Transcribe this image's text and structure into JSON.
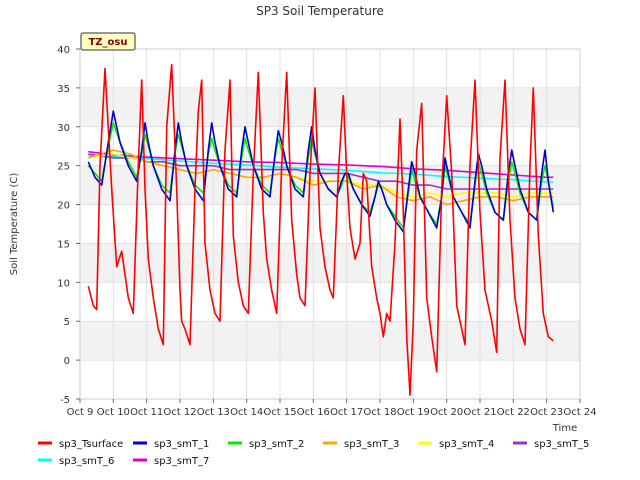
{
  "chart_data": {
    "type": "line",
    "title": "SP3 Soil Temperature",
    "xlabel": "Time",
    "ylabel": "Soil Temperature (C)",
    "badge": "TZ_osu",
    "xlim": [
      9,
      24
    ],
    "ylim": [
      -5,
      40
    ],
    "x_ticks": [
      {
        "value": 9,
        "label": "Oct 9"
      },
      {
        "value": 10,
        "label": "Oct 10"
      },
      {
        "value": 11,
        "label": "Oct 11"
      },
      {
        "value": 12,
        "label": "Oct 12"
      },
      {
        "value": 13,
        "label": "Oct 13"
      },
      {
        "value": 14,
        "label": "Oct 14"
      },
      {
        "value": 15,
        "label": "Oct 15"
      },
      {
        "value": 16,
        "label": "Oct 16"
      },
      {
        "value": 17,
        "label": "Oct 17"
      },
      {
        "value": 18,
        "label": "Oct 18"
      },
      {
        "value": 19,
        "label": "Oct 19"
      },
      {
        "value": 20,
        "label": "Oct 20"
      },
      {
        "value": 21,
        "label": "Oct 21"
      },
      {
        "value": 22,
        "label": "Oct 22"
      },
      {
        "value": 23,
        "label": "Oct 23"
      },
      {
        "value": 24,
        "label": "Oct 24"
      }
    ],
    "y_ticks": [
      {
        "value": -5,
        "label": "-5"
      },
      {
        "value": 0,
        "label": "0"
      },
      {
        "value": 5,
        "label": "5"
      },
      {
        "value": 10,
        "label": "10"
      },
      {
        "value": 15,
        "label": "15"
      },
      {
        "value": 20,
        "label": "20"
      },
      {
        "value": 25,
        "label": "25"
      },
      {
        "value": 30,
        "label": "30"
      },
      {
        "value": 35,
        "label": "35"
      },
      {
        "value": 40,
        "label": "40"
      }
    ],
    "series": [
      {
        "name": "sp3_Tsurface",
        "color": "#ff0000",
        "x": [
          9.25,
          9.4,
          9.5,
          9.6,
          9.75,
          9.95,
          10.1,
          10.25,
          10.45,
          10.6,
          10.75,
          10.85,
          10.95,
          11.05,
          11.2,
          11.35,
          11.5,
          11.6,
          11.75,
          11.9,
          12.0,
          12.05,
          12.15,
          12.3,
          12.45,
          12.55,
          12.65,
          12.75,
          12.9,
          13.05,
          13.2,
          13.35,
          13.5,
          13.6,
          13.75,
          13.9,
          14.05,
          14.2,
          14.35,
          14.5,
          14.6,
          14.75,
          14.9,
          15.05,
          15.2,
          15.35,
          15.5,
          15.6,
          15.75,
          15.9,
          16.05,
          16.2,
          16.35,
          16.5,
          16.6,
          16.75,
          16.9,
          17.0,
          17.1,
          17.25,
          17.4,
          17.5,
          17.6,
          17.75,
          17.9,
          18.0,
          18.1,
          18.2,
          18.3,
          18.45,
          18.6,
          18.7,
          18.8,
          18.9,
          19.0,
          19.1,
          19.25,
          19.4,
          19.55,
          19.7,
          19.85,
          20.0,
          20.15,
          20.3,
          20.45,
          20.55,
          20.7,
          20.85,
          21.0,
          21.15,
          21.35,
          21.5,
          21.6,
          21.75,
          21.9,
          22.05,
          22.2,
          22.35,
          22.5,
          22.6,
          22.75,
          22.9,
          23.05,
          23.2
        ],
        "y": [
          9.5,
          7,
          6.5,
          25,
          37.5,
          22,
          12,
          14,
          8,
          6,
          25,
          36,
          22,
          13,
          8,
          4,
          2,
          30,
          38,
          22,
          9,
          5,
          4,
          2,
          22,
          32,
          36,
          15,
          9,
          6,
          5,
          27,
          36,
          16,
          10,
          7,
          6,
          24,
          37,
          19,
          13,
          9,
          6,
          25,
          37,
          18,
          11,
          8,
          7,
          24,
          35,
          17,
          12,
          9,
          8,
          24,
          34,
          24,
          17,
          13,
          15,
          24,
          23,
          12,
          8,
          6,
          3,
          6,
          5,
          15,
          31,
          19,
          3,
          -4.5,
          5,
          27,
          33,
          8,
          3,
          -1.5,
          22,
          34,
          24,
          7,
          4,
          2,
          25,
          36,
          19,
          9,
          5,
          1,
          26,
          36,
          18,
          8,
          4,
          2,
          25,
          35,
          16,
          6,
          3,
          2.5
        ]
      },
      {
        "name": "sp3_smT_1",
        "color": "#0000cc",
        "x": [
          9.25,
          9.45,
          9.65,
          9.85,
          10.0,
          10.2,
          10.45,
          10.7,
          10.85,
          10.95,
          11.05,
          11.2,
          11.45,
          11.7,
          11.85,
          11.95,
          12.05,
          12.2,
          12.45,
          12.7,
          12.85,
          12.95,
          13.05,
          13.2,
          13.45,
          13.7,
          13.85,
          13.95,
          14.05,
          14.2,
          14.45,
          14.7,
          14.85,
          14.95,
          15.05,
          15.2,
          15.45,
          15.7,
          15.85,
          15.95,
          16.05,
          16.2,
          16.45,
          16.7,
          16.85,
          16.95,
          17.05,
          17.2,
          17.45,
          17.7,
          17.85,
          17.95,
          18.05,
          18.2,
          18.45,
          18.7,
          18.85,
          18.95,
          19.05,
          19.2,
          19.45,
          19.7,
          19.85,
          19.95,
          20.05,
          20.2,
          20.45,
          20.7,
          20.85,
          20.95,
          21.05,
          21.2,
          21.45,
          21.7,
          21.85,
          21.95,
          22.05,
          22.2,
          22.45,
          22.7,
          22.85,
          22.95,
          23.05,
          23.2
        ],
        "y": [
          25.5,
          23.5,
          22.5,
          28,
          32,
          28,
          25,
          23,
          27,
          30.5,
          28,
          25,
          22,
          20.5,
          27,
          30.5,
          28,
          25,
          22,
          20.5,
          27,
          30.5,
          28,
          25,
          22,
          21,
          27,
          30,
          28,
          25,
          22,
          21,
          26.5,
          29.5,
          28,
          25,
          22,
          21,
          27,
          30,
          27,
          24,
          22,
          21,
          23,
          24,
          24,
          22,
          20,
          18.5,
          21,
          23,
          22,
          20,
          18,
          16.5,
          22,
          25.5,
          24,
          21,
          19,
          17,
          21,
          26,
          24,
          21,
          19,
          17,
          23,
          26.5,
          25,
          22,
          19,
          18,
          24,
          27,
          25,
          22,
          19,
          18,
          24,
          27,
          23,
          19
        ]
      },
      {
        "name": "sp3_smT_2",
        "color": "#00ee00",
        "x": [
          9.25,
          9.45,
          9.65,
          9.85,
          10.0,
          10.2,
          10.45,
          10.7,
          10.85,
          10.95,
          11.05,
          11.2,
          11.45,
          11.7,
          11.85,
          11.95,
          12.05,
          12.2,
          12.45,
          12.7,
          12.85,
          12.95,
          13.05,
          13.2,
          13.45,
          13.7,
          13.85,
          13.95,
          14.05,
          14.2,
          14.45,
          14.7,
          14.85,
          14.95,
          15.05,
          15.2,
          15.45,
          15.7,
          15.85,
          15.95,
          16.05,
          16.2,
          16.45,
          16.7,
          16.85,
          16.95,
          17.05,
          17.2,
          17.45,
          17.7,
          17.85,
          17.95,
          18.05,
          18.2,
          18.45,
          18.7,
          18.85,
          18.95,
          19.05,
          19.2,
          19.45,
          19.7,
          19.85,
          19.95,
          20.05,
          20.2,
          20.45,
          20.7,
          20.85,
          20.95,
          21.05,
          21.2,
          21.45,
          21.7,
          21.85,
          21.95,
          22.05,
          22.2,
          22.45,
          22.7,
          22.85,
          22.95,
          23.05,
          23.2
        ],
        "y": [
          25,
          24,
          23,
          27.5,
          30.5,
          28,
          25.5,
          23.5,
          26.5,
          29,
          27.5,
          25,
          22.5,
          21.5,
          26.5,
          29,
          27.5,
          25,
          22.5,
          21.5,
          26.5,
          28.5,
          27,
          25,
          22.5,
          21.5,
          26,
          28.5,
          27,
          25,
          22.5,
          21.5,
          26,
          28.5,
          27,
          25,
          22.5,
          21.5,
          26,
          28.5,
          26.5,
          24,
          22,
          21,
          22.5,
          24,
          23.5,
          22,
          20,
          19,
          21,
          22.5,
          22,
          20,
          18.5,
          17,
          21.5,
          24.5,
          23,
          21,
          19,
          17.5,
          21,
          25,
          23.5,
          21,
          19,
          17.5,
          22.5,
          25.5,
          24,
          21.5,
          19,
          18,
          23,
          25.5,
          24,
          21.5,
          19,
          18,
          23,
          25,
          23,
          19.5
        ]
      },
      {
        "name": "sp3_smT_3",
        "color": "#ffa500",
        "x": [
          9.25,
          10.0,
          10.5,
          11.0,
          11.5,
          12.0,
          12.5,
          13.0,
          13.5,
          14.0,
          14.5,
          15.0,
          15.5,
          16.0,
          16.5,
          17.0,
          17.5,
          18.0,
          18.5,
          19.0,
          19.5,
          20.0,
          20.5,
          21.0,
          21.5,
          22.0,
          22.5,
          23.0,
          23.2
        ],
        "y": [
          26,
          27,
          26.5,
          25.5,
          25,
          24.5,
          24,
          24.5,
          24,
          23.5,
          23.5,
          24,
          23.5,
          22.5,
          23,
          23,
          22,
          22.5,
          21,
          20.5,
          21,
          20,
          20.5,
          21,
          21,
          20.5,
          21,
          21,
          21
        ]
      },
      {
        "name": "sp3_smT_4",
        "color": "#ffff00",
        "x": [
          9.25,
          10.0,
          10.5,
          11.0,
          11.5,
          12.0,
          12.5,
          13.0,
          13.5,
          14.0,
          14.5,
          15.0,
          15.5,
          16.0,
          16.5,
          17.0,
          17.5,
          18.0,
          18.5,
          19.0,
          19.5,
          20.0,
          20.5,
          21.0,
          21.5,
          22.0,
          22.5,
          23.0,
          23.2
        ],
        "y": [
          26,
          26.5,
          26,
          25.5,
          25,
          24.5,
          24,
          24.5,
          24,
          23.5,
          23.5,
          24,
          23.5,
          23,
          23,
          23,
          22.5,
          22.5,
          21.5,
          21,
          21.5,
          21,
          21.5,
          21.5,
          21.5,
          21,
          21.5,
          21.5,
          21.5
        ]
      },
      {
        "name": "sp3_smT_5",
        "color": "#9933cc",
        "x": [
          9.25,
          10.0,
          10.5,
          11.0,
          11.5,
          12.0,
          12.5,
          13.0,
          13.5,
          14.0,
          14.5,
          15.0,
          15.5,
          16.0,
          16.5,
          17.0,
          17.5,
          18.0,
          18.5,
          19.0,
          19.5,
          20.0,
          20.5,
          21.0,
          21.5,
          22.0,
          22.5,
          23.0,
          23.2
        ],
        "y": [
          26.5,
          26,
          26,
          25.5,
          25.5,
          25,
          25,
          25,
          24.5,
          24.5,
          24.5,
          24.5,
          24.5,
          24,
          24,
          24,
          23.5,
          23,
          23,
          22.5,
          22.5,
          22,
          22,
          22,
          22,
          22,
          22,
          22,
          22
        ]
      },
      {
        "name": "sp3_smT_6",
        "color": "#00ffff",
        "x": [
          9.25,
          10.0,
          11.0,
          12.0,
          13.0,
          14.0,
          15.0,
          16.0,
          17.0,
          18.0,
          19.0,
          20.0,
          21.0,
          22.0,
          23.0,
          23.2
        ],
        "y": [
          26.3,
          26.2,
          25.9,
          25.6,
          25.3,
          25.1,
          24.8,
          24.6,
          24.4,
          24.1,
          23.9,
          23.6,
          23.4,
          23.2,
          22.9,
          22.9
        ]
      },
      {
        "name": "sp3_smT_7",
        "color": "#dd00dd",
        "x": [
          9.25,
          10.0,
          11.0,
          12.0,
          13.0,
          14.0,
          15.0,
          16.0,
          17.0,
          18.0,
          19.0,
          20.0,
          21.0,
          22.0,
          23.0,
          23.2
        ],
        "y": [
          26.8,
          26.4,
          26.1,
          25.9,
          25.7,
          25.5,
          25.4,
          25.2,
          25.1,
          24.9,
          24.6,
          24.4,
          24.1,
          23.8,
          23.5,
          23.5
        ]
      }
    ]
  }
}
